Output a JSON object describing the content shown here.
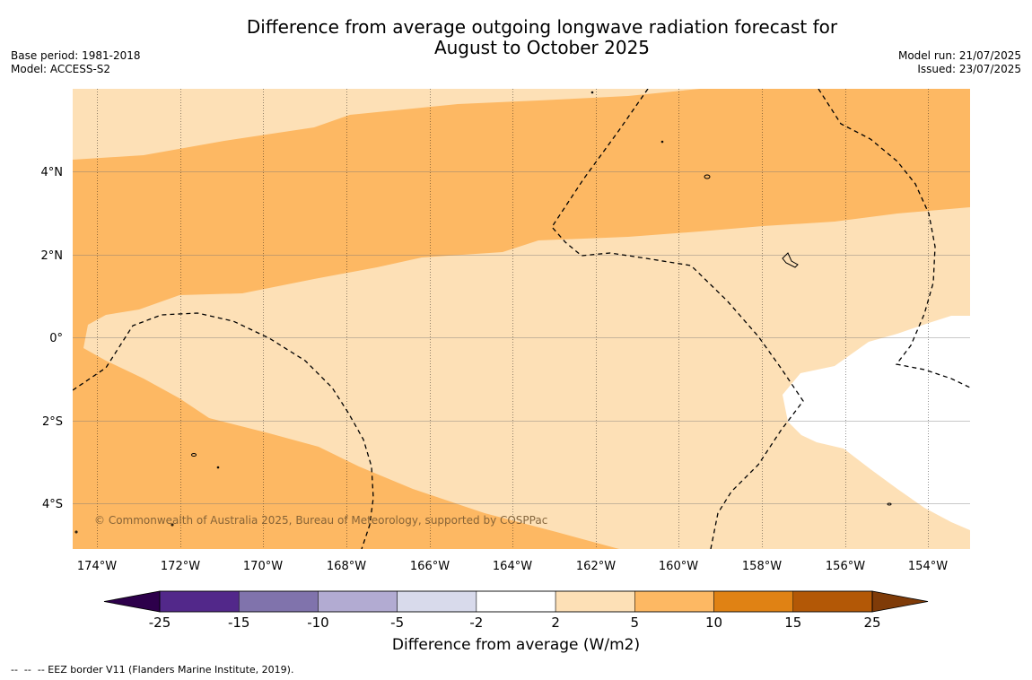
{
  "title_line1": "Difference from average outgoing longwave radiation forecast for",
  "title_line2": "August to October 2025",
  "meta_left": {
    "base_period": "Base period: 1981-2018",
    "model": "Model: ACCESS-S2"
  },
  "meta_right": {
    "model_run": "Model run: 21/07/2025",
    "issued": "Issued: 23/07/2025"
  },
  "copyright": "© Commonwealth of Australia 2025, Bureau of Meteorology, supported by COSPPac",
  "lon_ticks": [
    "174°W",
    "172°W",
    "170°W",
    "168°W",
    "166°W",
    "164°W",
    "162°W",
    "160°W",
    "158°W",
    "156°W",
    "154°W"
  ],
  "lat_ticks": [
    "4°N",
    "2°N",
    "0°",
    "2°S",
    "4°S"
  ],
  "legend": {
    "title": "Difference from average (W/m2)",
    "tick_labels": [
      "-25",
      "-15",
      "-10",
      "-5",
      "-2",
      "2",
      "5",
      "10",
      "15",
      "25"
    ],
    "colors": [
      "#52288a",
      "#8073ac",
      "#b2abd2",
      "#d8daeb",
      "#ffffff",
      "#fde0b6",
      "#fdb863",
      "#e08214",
      "#b35806"
    ],
    "under_color": "#2d004b",
    "over_color": "#7f3b08"
  },
  "footer": "--  --  -- EEZ border V11 (Flanders Marine Institute, 2019)."
}
